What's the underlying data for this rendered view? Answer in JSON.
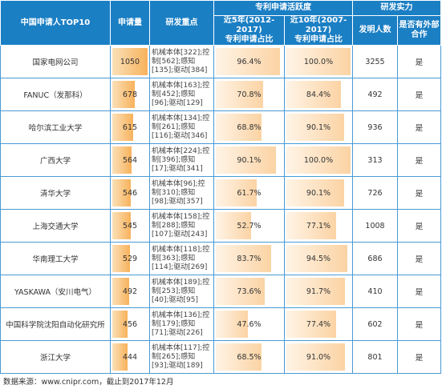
{
  "header": {
    "applicant": "中国申请人TOP10",
    "applications": "申请量",
    "focus": "研发重点",
    "activity": "专利申请活跃度",
    "recent5_line1": "近5年(2012-2017)",
    "recent5_line2": "专利申请占比",
    "recent10_line1": "近10年(2007-2017)",
    "recent10_line2": "专利申请占比",
    "strength": "研发实力",
    "inventors": "发明人数",
    "external": "是否有外部合作"
  },
  "max_applications": 1050,
  "rows": [
    {
      "name": "国家电网公司",
      "count": "1050",
      "count_value": 1050,
      "focus": "机械本体[322];控制[562];感知[135];驱动[384]",
      "pct5": "96.4%",
      "pct5_value": 96.4,
      "pct10": "100.0%",
      "pct10_value": 100.0,
      "inventors": "3255",
      "coop": "是"
    },
    {
      "name": "FANUC（发那科）",
      "count": "678",
      "count_value": 678,
      "focus": "机械本体[163];控制[452];感知[96];驱动[129]",
      "pct5": "70.8%",
      "pct5_value": 70.8,
      "pct10": "84.4%",
      "pct10_value": 84.4,
      "inventors": "492",
      "coop": "是"
    },
    {
      "name": "哈尔滨工业大学",
      "count": "615",
      "count_value": 615,
      "focus": "机械本体[134];控制[261];感知[116];驱动[346]",
      "pct5": "68.8%",
      "pct5_value": 68.8,
      "pct10": "90.1%",
      "pct10_value": 90.1,
      "inventors": "936",
      "coop": "是"
    },
    {
      "name": "广西大学",
      "count": "564",
      "count_value": 564,
      "focus": "机械本体[224];控制[396];感知[17];驱动[341]",
      "pct5": "90.1%",
      "pct5_value": 90.1,
      "pct10": "100.0%",
      "pct10_value": 100.0,
      "inventors": "313",
      "coop": "是"
    },
    {
      "name": "清华大学",
      "count": "546",
      "count_value": 546,
      "focus": "机械本体[96];控制[310];感知[98];驱动[357]",
      "pct5": "61.7%",
      "pct5_value": 61.7,
      "pct10": "90.1%",
      "pct10_value": 90.1,
      "inventors": "726",
      "coop": "是"
    },
    {
      "name": "上海交通大学",
      "count": "545",
      "count_value": 545,
      "focus": "机械本体[158];控制[288];感知[107];驱动[243]",
      "pct5": "52.7%",
      "pct5_value": 52.7,
      "pct10": "77.1%",
      "pct10_value": 77.1,
      "inventors": "1008",
      "coop": "是"
    },
    {
      "name": "华南理工大学",
      "count": "529",
      "count_value": 529,
      "focus": "机械本体[118];控制[363];感知[114];驱动[269]",
      "pct5": "83.7%",
      "pct5_value": 83.7,
      "pct10": "94.5%",
      "pct10_value": 94.5,
      "inventors": "686",
      "coop": "是"
    },
    {
      "name": "YASKAWA（安川电气）",
      "count": "492",
      "count_value": 492,
      "focus": "机械本体[189];控制[253];感知[40];驱动[95]",
      "pct5": "73.6%",
      "pct5_value": 73.6,
      "pct10": "91.7%",
      "pct10_value": 91.7,
      "inventors": "410",
      "coop": "是"
    },
    {
      "name": "中国科学院沈阳自动化研究所",
      "count": "456",
      "count_value": 456,
      "focus": "机械本体[136];控制[179];感知[71];驱动[226]",
      "pct5": "47.6%",
      "pct5_value": 47.6,
      "pct10": "77.4%",
      "pct10_value": 77.4,
      "inventors": "602",
      "coop": "是"
    },
    {
      "name": "浙江大学",
      "count": "444",
      "count_value": 444,
      "focus": "机械本体[117];控制[265];感知[93];驱动[189]",
      "pct5": "68.5%",
      "pct5_value": 68.5,
      "pct10": "91.0%",
      "pct10_value": 91.0,
      "inventors": "801",
      "coop": "是"
    }
  ],
  "source": "数据来源：www.cnipr.com，截止到2017年12月",
  "colors": {
    "header_bg": "#1b7fc4",
    "border": "#4a9ad4",
    "bar": "#f7b25c"
  }
}
